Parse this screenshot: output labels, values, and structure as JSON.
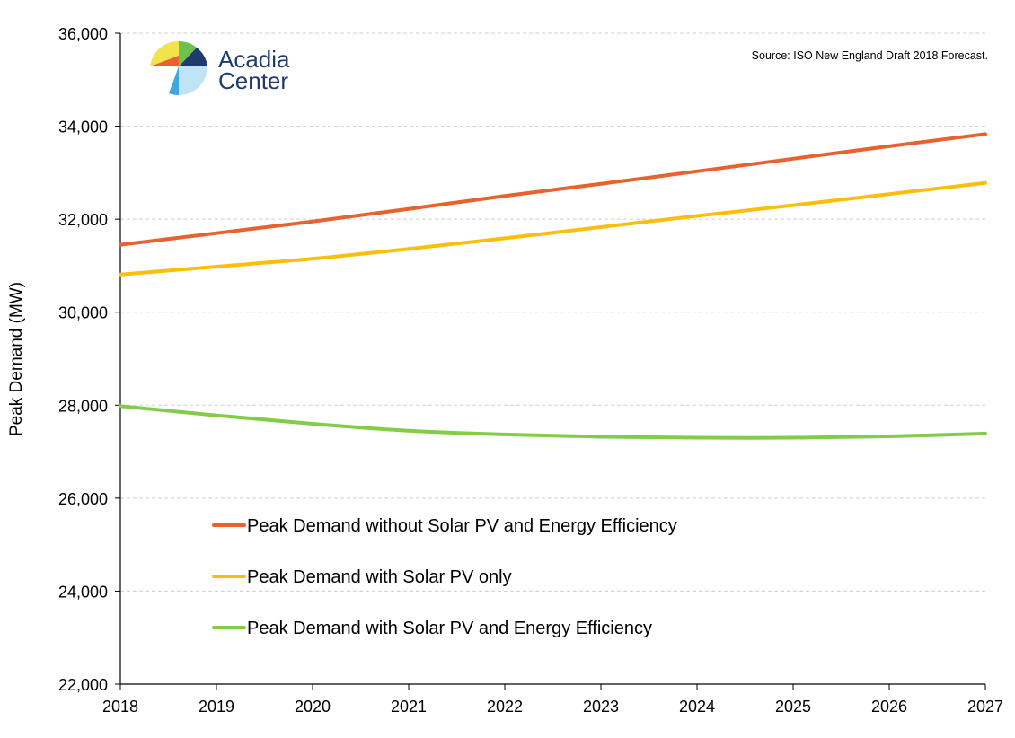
{
  "logo": {
    "line1": "Acadia",
    "line2": "Center"
  },
  "source_note": "Source: ISO New England Draft 2018 Forecast.",
  "chart_data": {
    "type": "line",
    "ylabel": "Peak Demand (MW)",
    "xlabel": "",
    "x": [
      2018,
      2019,
      2020,
      2021,
      2022,
      2023,
      2024,
      2025,
      2026,
      2027
    ],
    "x_tick_labels": [
      "2018",
      "2019",
      "2020",
      "2021",
      "2022",
      "2023",
      "2024",
      "2025",
      "2026",
      "2027"
    ],
    "ylim": [
      22000,
      36000
    ],
    "y_ticks": [
      22000,
      24000,
      26000,
      28000,
      30000,
      32000,
      34000,
      36000
    ],
    "y_tick_labels": [
      "22,000",
      "24,000",
      "26,000",
      "28,000",
      "30,000",
      "32,000",
      "34,000",
      "36,000"
    ],
    "grid": "horizontal-dashed",
    "legend_position": "bottom-left",
    "series": [
      {
        "name": "Peak Demand without Solar PV and Energy Efficiency",
        "color": "#e8622f",
        "values": [
          31450,
          31700,
          31950,
          32220,
          32500,
          32760,
          33030,
          33300,
          33570,
          33830
        ]
      },
      {
        "name": "Peak Demand with Solar PV only",
        "color": "#fbbf0b",
        "values": [
          30810,
          30980,
          31150,
          31360,
          31590,
          31830,
          32070,
          32300,
          32540,
          32780
        ]
      },
      {
        "name": "Peak Demand with Solar PV and Energy Efficiency",
        "color": "#82cc4a",
        "values": [
          27980,
          27780,
          27600,
          27450,
          27370,
          27320,
          27300,
          27300,
          27330,
          27390
        ]
      }
    ]
  }
}
